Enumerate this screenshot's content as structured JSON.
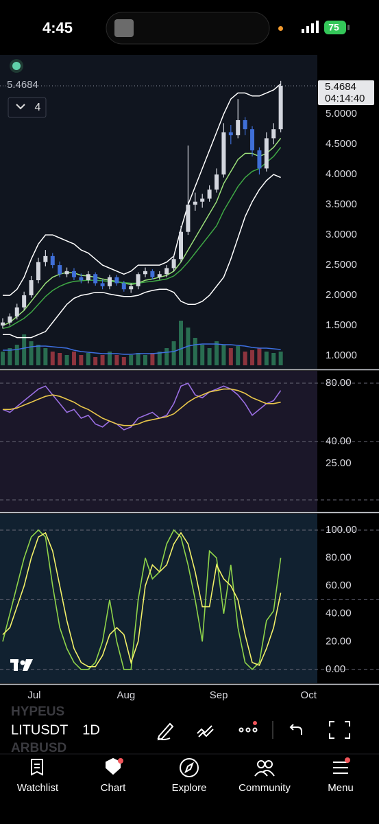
{
  "status_bar": {
    "time": "4:45",
    "battery": "75"
  },
  "chart_data": [
    {
      "type": "candlestick",
      "last_price": "5.4684",
      "countdown": "04:14:40",
      "indicator_count": "4",
      "xlim": [
        -0.38,
        44.13
      ],
      "xticks": [
        {
          "value": 4.42,
          "label": "Jul"
        },
        {
          "value": 17.3,
          "label": "Aug"
        },
        {
          "value": 30.3,
          "label": "Sep"
        },
        {
          "value": 42.9,
          "label": "Oct"
        }
      ],
      "ylim": [
        0.784,
        5.98
      ],
      "yticks": [
        {
          "value": 1,
          "label": "1.0000"
        },
        {
          "value": 1.5,
          "label": "1.5000"
        },
        {
          "value": 2,
          "label": "2.0000"
        },
        {
          "value": 2.5,
          "label": "2.5000"
        },
        {
          "value": 3,
          "label": "3.0000"
        },
        {
          "value": 3.5,
          "label": "3.5000"
        },
        {
          "value": 4,
          "label": "4.0000"
        },
        {
          "value": 4.5,
          "label": "4.5000"
        },
        {
          "value": 5,
          "label": "5.0000"
        }
      ],
      "up_color": "#d3d6de",
      "down_color": "#3f6fd8",
      "open": [
        1.5,
        1.55,
        1.65,
        1.8,
        2.0,
        2.25,
        2.55,
        2.65,
        2.5,
        2.35,
        2.4,
        2.3,
        2.25,
        2.35,
        2.2,
        2.15,
        2.3,
        2.2,
        2.1,
        2.15,
        2.35,
        2.4,
        2.3,
        2.35,
        2.45,
        2.6,
        3.05,
        3.5,
        3.55,
        3.6,
        3.75,
        4.0,
        4.7,
        4.65,
        4.9,
        4.75,
        4.4,
        4.1,
        4.6,
        4.75
      ],
      "high": [
        1.62,
        1.7,
        1.86,
        2.06,
        2.32,
        2.62,
        2.75,
        2.7,
        2.56,
        2.46,
        2.45,
        2.36,
        2.4,
        2.38,
        2.26,
        2.34,
        2.34,
        2.24,
        2.2,
        2.38,
        2.46,
        2.43,
        2.4,
        2.5,
        2.66,
        3.15,
        4.48,
        3.7,
        3.68,
        3.82,
        4.1,
        4.85,
        4.82,
        5.25,
        4.95,
        4.8,
        4.45,
        4.7,
        4.85,
        5.55
      ],
      "low": [
        1.45,
        1.5,
        1.6,
        1.76,
        1.96,
        2.2,
        2.48,
        2.45,
        2.3,
        2.3,
        2.25,
        2.2,
        2.2,
        2.16,
        2.1,
        2.1,
        2.16,
        2.06,
        2.04,
        2.1,
        2.3,
        2.26,
        2.26,
        2.3,
        2.4,
        2.55,
        3.0,
        3.4,
        3.45,
        3.55,
        3.7,
        3.95,
        4.5,
        4.6,
        4.65,
        4.3,
        4.0,
        4.05,
        4.5,
        4.7
      ],
      "close": [
        1.55,
        1.65,
        1.8,
        2.0,
        2.25,
        2.55,
        2.65,
        2.5,
        2.35,
        2.4,
        2.3,
        2.25,
        2.35,
        2.2,
        2.15,
        2.3,
        2.2,
        2.1,
        2.15,
        2.35,
        2.4,
        2.3,
        2.35,
        2.45,
        2.6,
        3.05,
        3.5,
        3.55,
        3.6,
        3.75,
        4.0,
        4.7,
        4.65,
        4.9,
        4.75,
        4.4,
        4.1,
        4.6,
        4.75,
        5.4684
      ],
      "overlays": [
        {
          "color": "#ffffff",
          "values": [
            2.0,
            2.0,
            2.1,
            2.3,
            2.6,
            2.85,
            3.0,
            3.0,
            2.95,
            2.9,
            2.85,
            2.75,
            2.7,
            2.6,
            2.5,
            2.45,
            2.4,
            2.35,
            2.4,
            2.5,
            2.5,
            2.5,
            2.5,
            2.55,
            2.65,
            3.1,
            3.5,
            3.8,
            4.1,
            4.4,
            4.7,
            5.0,
            5.25,
            5.35,
            5.35,
            5.3,
            5.3,
            5.35,
            5.4,
            5.5
          ]
        },
        {
          "color": "#ffffff",
          "values": [
            1.35,
            1.35,
            1.3,
            1.3,
            1.3,
            1.35,
            1.4,
            1.55,
            1.7,
            1.85,
            1.95,
            2.0,
            2.02,
            2.05,
            2.05,
            2.02,
            2.0,
            1.98,
            1.98,
            2.0,
            2.05,
            2.08,
            2.1,
            2.1,
            2.05,
            1.9,
            1.85,
            1.85,
            1.9,
            2.0,
            2.15,
            2.3,
            2.6,
            2.95,
            3.3,
            3.55,
            3.75,
            3.9,
            4.0,
            3.95
          ]
        },
        {
          "color": "#9be07a",
          "values": [
            1.5,
            1.55,
            1.65,
            1.75,
            1.9,
            2.05,
            2.2,
            2.3,
            2.35,
            2.38,
            2.37,
            2.33,
            2.32,
            2.3,
            2.27,
            2.25,
            2.23,
            2.2,
            2.18,
            2.2,
            2.25,
            2.27,
            2.3,
            2.33,
            2.4,
            2.55,
            2.75,
            2.95,
            3.15,
            3.35,
            3.55,
            3.85,
            4.05,
            4.25,
            4.35,
            4.35,
            4.3,
            4.35,
            4.45,
            4.6
          ]
        },
        {
          "color": "#3fa845",
          "values": [
            1.45,
            1.48,
            1.55,
            1.62,
            1.72,
            1.85,
            1.98,
            2.08,
            2.15,
            2.2,
            2.23,
            2.24,
            2.25,
            2.25,
            2.24,
            2.23,
            2.22,
            2.21,
            2.2,
            2.2,
            2.22,
            2.23,
            2.25,
            2.27,
            2.32,
            2.42,
            2.55,
            2.7,
            2.85,
            3.0,
            3.15,
            3.4,
            3.6,
            3.8,
            3.95,
            4.05,
            4.1,
            4.2,
            4.3,
            4.45
          ]
        }
      ],
      "volume": {
        "vlim": [
          0,
          100
        ],
        "up_color": "#2e7d5b",
        "down_color": "#a33a44",
        "ma_color": "#3d6fe0",
        "values": [
          20,
          25,
          30,
          45,
          35,
          30,
          25,
          20,
          18,
          15,
          20,
          15,
          18,
          12,
          15,
          20,
          15,
          12,
          15,
          18,
          15,
          18,
          20,
          25,
          35,
          65,
          55,
          40,
          30,
          25,
          35,
          30,
          25,
          28,
          20,
          22,
          25,
          20,
          18,
          20
        ],
        "ma": [
          22,
          22,
          23,
          25,
          27,
          28,
          28,
          27,
          26,
          25,
          22,
          20,
          19,
          18,
          17,
          17,
          17,
          16,
          16,
          17,
          17,
          17,
          18,
          19,
          20,
          24,
          28,
          30,
          31,
          31,
          31,
          30,
          30,
          29,
          28,
          26,
          25,
          25,
          24,
          23
        ]
      }
    },
    {
      "type": "line",
      "ylim": [
        -8,
        88.5
      ],
      "background": "#1b1729",
      "yticks": [
        {
          "value": 80,
          "label": "80.00"
        },
        {
          "value": 40,
          "label": "40.00"
        },
        {
          "value": 25,
          "label": "25.00"
        }
      ],
      "levels": [
        80,
        40,
        0
      ],
      "series": [
        {
          "color": "#9a6fe2",
          "values": [
            62,
            60,
            64,
            68,
            72,
            76,
            78,
            72,
            66,
            60,
            62,
            56,
            58,
            52,
            50,
            54,
            52,
            48,
            50,
            56,
            58,
            60,
            56,
            58,
            66,
            78,
            80,
            72,
            70,
            74,
            76,
            78,
            76,
            72,
            66,
            58,
            62,
            66,
            68,
            75
          ]
        },
        {
          "color": "#e8c64a",
          "values": [
            62,
            62,
            63,
            65,
            67,
            69,
            71,
            72,
            71,
            69,
            67,
            64,
            62,
            59,
            56,
            54,
            52,
            51,
            51,
            52,
            54,
            55,
            56,
            57,
            59,
            63,
            67,
            70,
            72,
            74,
            75,
            76,
            76,
            75,
            73,
            70,
            68,
            66,
            66,
            67
          ]
        }
      ]
    },
    {
      "type": "line",
      "ylim": [
        -9.9,
        111.8
      ],
      "background": "#112130",
      "yticks": [
        {
          "value": 0,
          "label": "0.00"
        },
        {
          "value": 20,
          "label": "20.00"
        },
        {
          "value": 40,
          "label": "40.00"
        },
        {
          "value": 60,
          "label": "60.00"
        },
        {
          "value": 80,
          "label": "80.00"
        },
        {
          "value": 100,
          "label": "100.00"
        }
      ],
      "levels": [
        0,
        50,
        100
      ],
      "series": [
        {
          "color": "#8fd44a",
          "values": [
            20,
            40,
            60,
            80,
            95,
            100,
            95,
            60,
            30,
            15,
            5,
            0,
            0,
            5,
            20,
            50,
            20,
            0,
            0,
            50,
            80,
            65,
            70,
            90,
            100,
            95,
            75,
            50,
            20,
            85,
            80,
            40,
            75,
            30,
            5,
            0,
            5,
            35,
            42,
            80
          ]
        },
        {
          "color": "#f2f068",
          "values": [
            25,
            30,
            45,
            60,
            80,
            95,
            98,
            85,
            60,
            35,
            15,
            5,
            2,
            2,
            10,
            25,
            30,
            25,
            5,
            20,
            60,
            75,
            70,
            75,
            90,
            98,
            90,
            70,
            45,
            45,
            75,
            65,
            60,
            50,
            25,
            5,
            3,
            15,
            30,
            55
          ]
        }
      ]
    }
  ],
  "toolbar": {
    "symbols": [
      "HYPEUS",
      "LITUSDT",
      "ARBUSD"
    ],
    "interval": "1D"
  },
  "nav": {
    "items": [
      "Watchlist",
      "Chart",
      "Explore",
      "Community",
      "Menu"
    ]
  }
}
